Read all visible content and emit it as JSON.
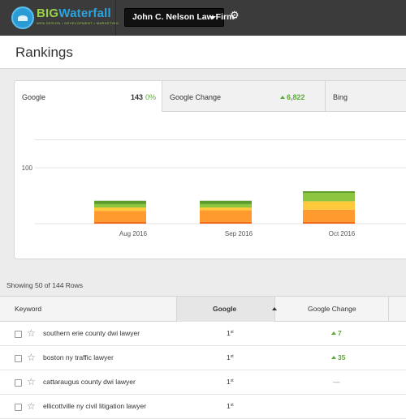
{
  "brand": {
    "name_part1": "BIG",
    "name_part2": "Waterfall",
    "tagline": "WEB DESIGN • DEVELOPMENT • MARKETING"
  },
  "account": {
    "name": "John C. Nelson Law Firm"
  },
  "icons": {
    "settings": "gear-icon",
    "menu_caret": "chevron-down-icon",
    "favorite": "star-icon"
  },
  "page": {
    "title": "Rankings"
  },
  "tabs": [
    {
      "label": "Google",
      "count": "143",
      "change": "0%"
    },
    {
      "label": "Google Change",
      "change": "6,822"
    },
    {
      "label": "Bing"
    }
  ],
  "chart_data": {
    "type": "bar",
    "stacked": true,
    "categories": [
      "Aug 2016",
      "Sep 2016",
      "Oct 2016"
    ],
    "y_ticks": [
      "100"
    ],
    "ylim": [
      0,
      200
    ],
    "grid": true,
    "series": [
      {
        "color": "#f26b1d",
        "values": [
          3,
          3,
          3
        ]
      },
      {
        "color": "#ff9a2e",
        "values": [
          20,
          21,
          22
        ]
      },
      {
        "color": "#ffc93c",
        "values": [
          6,
          5,
          15
        ]
      },
      {
        "color": "#8cc63f",
        "values": [
          6,
          6,
          15
        ]
      },
      {
        "color": "#5b9c2a",
        "values": [
          6,
          6,
          3
        ]
      }
    ]
  },
  "table": {
    "rows_info": "Showing 50 of 144 Rows",
    "columns": [
      "Keyword",
      "Google",
      "Google Change"
    ],
    "rows": [
      {
        "keyword": "southern erie county dwi lawyer",
        "rank": "1",
        "rank_suffix": "st",
        "change": "7",
        "change_dir": "up"
      },
      {
        "keyword": "boston ny traffic lawyer",
        "rank": "1",
        "rank_suffix": "st",
        "change": "35",
        "change_dir": "up"
      },
      {
        "keyword": "cattaraugus county dwi lawyer",
        "rank": "1",
        "rank_suffix": "st",
        "change": "—",
        "change_dir": "none"
      },
      {
        "keyword": "ellicottville ny civil litigation lawyer",
        "rank": "1",
        "rank_suffix": "st",
        "change": "",
        "change_dir": "none"
      }
    ]
  },
  "colors": {
    "topbar": "#3b3b3b",
    "positive": "#5ca838",
    "brand_green": "#9ad14a",
    "brand_blue": "#2aa5e0"
  }
}
